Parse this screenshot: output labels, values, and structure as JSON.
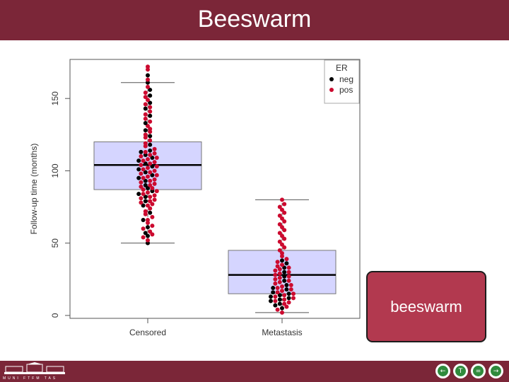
{
  "slide": {
    "title": "Beeswarm",
    "callout": "beeswarm",
    "footer_text": "MUNI FTFM TAS"
  },
  "colors": {
    "title_bar": "#7b2638",
    "neg": "#000000",
    "pos": "#cc0a2f",
    "box_fill": "#d5d5ff"
  },
  "footer": {
    "logo_icon": "university-building-icon",
    "nav_icons": [
      "prev-slide-icon",
      "table-of-contents-icon",
      "equal-icon",
      "next-slide-icon"
    ]
  },
  "chart_data": {
    "type": "beeswarm-boxplot",
    "title": "",
    "xlabel": "",
    "ylabel": "Follow-up time (months)",
    "ylim": [
      -2,
      177
    ],
    "categories": [
      "Censored",
      "Metastasis"
    ],
    "y_ticks": [
      0,
      50,
      100,
      150
    ],
    "legend": {
      "title": "ER",
      "position": "top-right",
      "entries": [
        "neg",
        "pos"
      ]
    },
    "boxes": [
      {
        "category": "Censored",
        "lower_whisker": 50,
        "q1": 87,
        "median": 104,
        "q3": 120,
        "upper_whisker": 161
      },
      {
        "category": "Metastasis",
        "lower_whisker": 2,
        "q1": 15,
        "median": 28,
        "q3": 45,
        "upper_whisker": 80
      }
    ],
    "series": [
      {
        "name": "neg",
        "points": [
          {
            "x": "Censored",
            "y": 50
          },
          {
            "x": "Censored",
            "y": 55
          },
          {
            "x": "Censored",
            "y": 57
          },
          {
            "x": "Censored",
            "y": 61
          },
          {
            "x": "Censored",
            "y": 66
          },
          {
            "x": "Censored",
            "y": 71
          },
          {
            "x": "Censored",
            "y": 76
          },
          {
            "x": "Censored",
            "y": 79
          },
          {
            "x": "Censored",
            "y": 82
          },
          {
            "x": "Censored",
            "y": 84
          },
          {
            "x": "Censored",
            "y": 86
          },
          {
            "x": "Censored",
            "y": 88
          },
          {
            "x": "Censored",
            "y": 90
          },
          {
            "x": "Censored",
            "y": 93
          },
          {
            "x": "Censored",
            "y": 95
          },
          {
            "x": "Censored",
            "y": 97
          },
          {
            "x": "Censored",
            "y": 99
          },
          {
            "x": "Censored",
            "y": 101
          },
          {
            "x": "Censored",
            "y": 103
          },
          {
            "x": "Censored",
            "y": 105
          },
          {
            "x": "Censored",
            "y": 107
          },
          {
            "x": "Censored",
            "y": 109
          },
          {
            "x": "Censored",
            "y": 111
          },
          {
            "x": "Censored",
            "y": 113
          },
          {
            "x": "Censored",
            "y": 114
          },
          {
            "x": "Censored",
            "y": 118
          },
          {
            "x": "Censored",
            "y": 124
          },
          {
            "x": "Censored",
            "y": 128
          },
          {
            "x": "Censored",
            "y": 133
          },
          {
            "x": "Censored",
            "y": 138
          },
          {
            "x": "Censored",
            "y": 143
          },
          {
            "x": "Censored",
            "y": 147
          },
          {
            "x": "Censored",
            "y": 152
          },
          {
            "x": "Censored",
            "y": 156
          },
          {
            "x": "Censored",
            "y": 161
          },
          {
            "x": "Censored",
            "y": 166
          },
          {
            "x": "Metastasis",
            "y": 5
          },
          {
            "x": "Metastasis",
            "y": 7
          },
          {
            "x": "Metastasis",
            "y": 8
          },
          {
            "x": "Metastasis",
            "y": 10
          },
          {
            "x": "Metastasis",
            "y": 11
          },
          {
            "x": "Metastasis",
            "y": 12
          },
          {
            "x": "Metastasis",
            "y": 13
          },
          {
            "x": "Metastasis",
            "y": 14
          },
          {
            "x": "Metastasis",
            "y": 15
          },
          {
            "x": "Metastasis",
            "y": 16
          },
          {
            "x": "Metastasis",
            "y": 18
          },
          {
            "x": "Metastasis",
            "y": 19
          },
          {
            "x": "Metastasis",
            "y": 21
          },
          {
            "x": "Metastasis",
            "y": 24
          },
          {
            "x": "Metastasis",
            "y": 27
          },
          {
            "x": "Metastasis",
            "y": 30
          },
          {
            "x": "Metastasis",
            "y": 33
          },
          {
            "x": "Metastasis",
            "y": 36
          },
          {
            "x": "Metastasis",
            "y": 38
          }
        ]
      },
      {
        "name": "pos",
        "points": [
          {
            "x": "Censored",
            "y": 52
          },
          {
            "x": "Censored",
            "y": 54
          },
          {
            "x": "Censored",
            "y": 56
          },
          {
            "x": "Censored",
            "y": 58
          },
          {
            "x": "Censored",
            "y": 60
          },
          {
            "x": "Censored",
            "y": 62
          },
          {
            "x": "Censored",
            "y": 64
          },
          {
            "x": "Censored",
            "y": 66
          },
          {
            "x": "Censored",
            "y": 68
          },
          {
            "x": "Censored",
            "y": 70
          },
          {
            "x": "Censored",
            "y": 72
          },
          {
            "x": "Censored",
            "y": 74
          },
          {
            "x": "Censored",
            "y": 76
          },
          {
            "x": "Censored",
            "y": 77
          },
          {
            "x": "Censored",
            "y": 78
          },
          {
            "x": "Censored",
            "y": 79
          },
          {
            "x": "Censored",
            "y": 80
          },
          {
            "x": "Censored",
            "y": 81
          },
          {
            "x": "Censored",
            "y": 82
          },
          {
            "x": "Censored",
            "y": 83
          },
          {
            "x": "Censored",
            "y": 84
          },
          {
            "x": "Censored",
            "y": 85
          },
          {
            "x": "Censored",
            "y": 86
          },
          {
            "x": "Censored",
            "y": 87
          },
          {
            "x": "Censored",
            "y": 88
          },
          {
            "x": "Censored",
            "y": 89
          },
          {
            "x": "Censored",
            "y": 90
          },
          {
            "x": "Censored",
            "y": 91
          },
          {
            "x": "Censored",
            "y": 92
          },
          {
            "x": "Censored",
            "y": 93
          },
          {
            "x": "Censored",
            "y": 94
          },
          {
            "x": "Censored",
            "y": 95
          },
          {
            "x": "Censored",
            "y": 96
          },
          {
            "x": "Censored",
            "y": 97
          },
          {
            "x": "Censored",
            "y": 98
          },
          {
            "x": "Censored",
            "y": 99
          },
          {
            "x": "Censored",
            "y": 100
          },
          {
            "x": "Censored",
            "y": 101
          },
          {
            "x": "Censored",
            "y": 102
          },
          {
            "x": "Censored",
            "y": 103
          },
          {
            "x": "Censored",
            "y": 104
          },
          {
            "x": "Censored",
            "y": 105
          },
          {
            "x": "Censored",
            "y": 106
          },
          {
            "x": "Censored",
            "y": 107
          },
          {
            "x": "Censored",
            "y": 108
          },
          {
            "x": "Censored",
            "y": 109
          },
          {
            "x": "Censored",
            "y": 110
          },
          {
            "x": "Censored",
            "y": 111
          },
          {
            "x": "Censored",
            "y": 112
          },
          {
            "x": "Censored",
            "y": 113
          },
          {
            "x": "Censored",
            "y": 115
          },
          {
            "x": "Censored",
            "y": 117
          },
          {
            "x": "Censored",
            "y": 119
          },
          {
            "x": "Censored",
            "y": 121
          },
          {
            "x": "Censored",
            "y": 123
          },
          {
            "x": "Censored",
            "y": 125
          },
          {
            "x": "Censored",
            "y": 127
          },
          {
            "x": "Censored",
            "y": 129
          },
          {
            "x": "Censored",
            "y": 131
          },
          {
            "x": "Censored",
            "y": 134
          },
          {
            "x": "Censored",
            "y": 136
          },
          {
            "x": "Censored",
            "y": 139
          },
          {
            "x": "Censored",
            "y": 141
          },
          {
            "x": "Censored",
            "y": 144
          },
          {
            "x": "Censored",
            "y": 146
          },
          {
            "x": "Censored",
            "y": 149
          },
          {
            "x": "Censored",
            "y": 151
          },
          {
            "x": "Censored",
            "y": 154
          },
          {
            "x": "Censored",
            "y": 158
          },
          {
            "x": "Censored",
            "y": 163
          },
          {
            "x": "Censored",
            "y": 170
          },
          {
            "x": "Censored",
            "y": 172
          },
          {
            "x": "Metastasis",
            "y": 2
          },
          {
            "x": "Metastasis",
            "y": 4
          },
          {
            "x": "Metastasis",
            "y": 6
          },
          {
            "x": "Metastasis",
            "y": 8
          },
          {
            "x": "Metastasis",
            "y": 9
          },
          {
            "x": "Metastasis",
            "y": 10
          },
          {
            "x": "Metastasis",
            "y": 11
          },
          {
            "x": "Metastasis",
            "y": 12
          },
          {
            "x": "Metastasis",
            "y": 13
          },
          {
            "x": "Metastasis",
            "y": 14
          },
          {
            "x": "Metastasis",
            "y": 15
          },
          {
            "x": "Metastasis",
            "y": 16
          },
          {
            "x": "Metastasis",
            "y": 17
          },
          {
            "x": "Metastasis",
            "y": 18
          },
          {
            "x": "Metastasis",
            "y": 19
          },
          {
            "x": "Metastasis",
            "y": 20
          },
          {
            "x": "Metastasis",
            "y": 21
          },
          {
            "x": "Metastasis",
            "y": 22
          },
          {
            "x": "Metastasis",
            "y": 23
          },
          {
            "x": "Metastasis",
            "y": 24
          },
          {
            "x": "Metastasis",
            "y": 25
          },
          {
            "x": "Metastasis",
            "y": 26
          },
          {
            "x": "Metastasis",
            "y": 27
          },
          {
            "x": "Metastasis",
            "y": 28
          },
          {
            "x": "Metastasis",
            "y": 29
          },
          {
            "x": "Metastasis",
            "y": 30
          },
          {
            "x": "Metastasis",
            "y": 31
          },
          {
            "x": "Metastasis",
            "y": 32
          },
          {
            "x": "Metastasis",
            "y": 33
          },
          {
            "x": "Metastasis",
            "y": 34
          },
          {
            "x": "Metastasis",
            "y": 35
          },
          {
            "x": "Metastasis",
            "y": 37
          },
          {
            "x": "Metastasis",
            "y": 39
          },
          {
            "x": "Metastasis",
            "y": 41
          },
          {
            "x": "Metastasis",
            "y": 43
          },
          {
            "x": "Metastasis",
            "y": 45
          },
          {
            "x": "Metastasis",
            "y": 47
          },
          {
            "x": "Metastasis",
            "y": 49
          },
          {
            "x": "Metastasis",
            "y": 51
          },
          {
            "x": "Metastasis",
            "y": 53
          },
          {
            "x": "Metastasis",
            "y": 55
          },
          {
            "x": "Metastasis",
            "y": 57
          },
          {
            "x": "Metastasis",
            "y": 59
          },
          {
            "x": "Metastasis",
            "y": 61
          },
          {
            "x": "Metastasis",
            "y": 63
          },
          {
            "x": "Metastasis",
            "y": 65
          },
          {
            "x": "Metastasis",
            "y": 67
          },
          {
            "x": "Metastasis",
            "y": 69
          },
          {
            "x": "Metastasis",
            "y": 71
          },
          {
            "x": "Metastasis",
            "y": 73
          },
          {
            "x": "Metastasis",
            "y": 75
          },
          {
            "x": "Metastasis",
            "y": 77
          },
          {
            "x": "Metastasis",
            "y": 80
          }
        ]
      }
    ]
  }
}
